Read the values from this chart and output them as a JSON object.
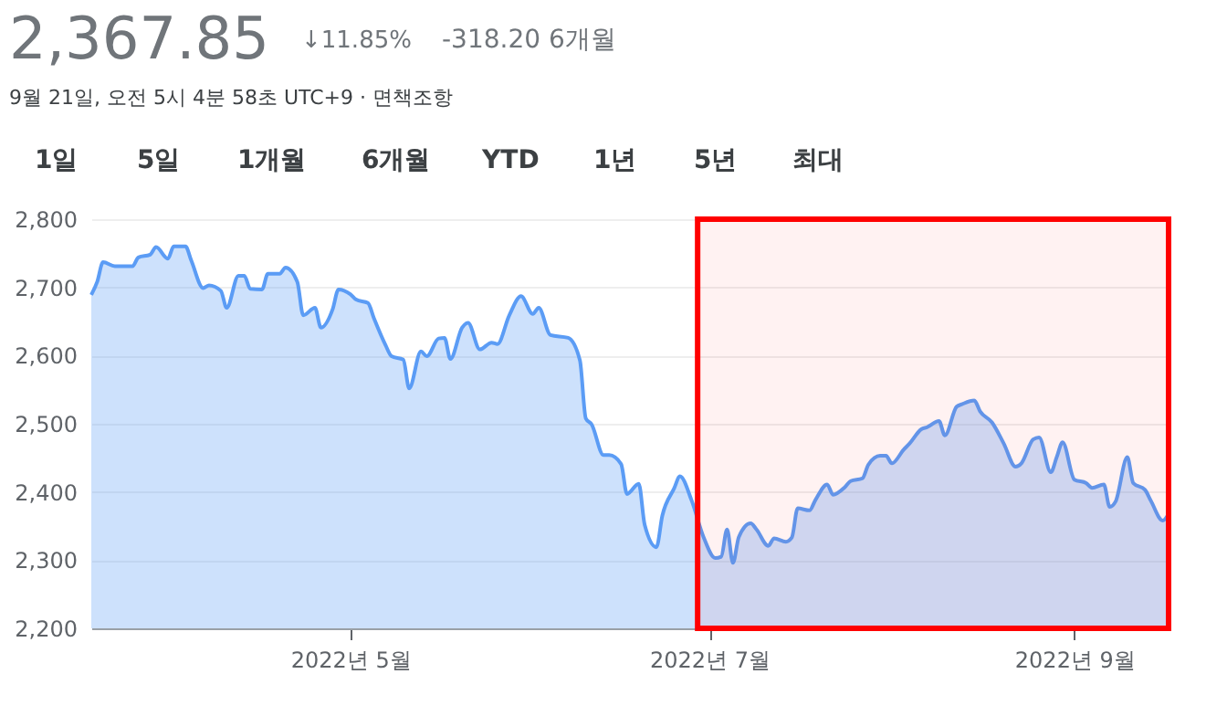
{
  "chart_data": {
    "type": "area",
    "title": "2,367.85",
    "annotations": [
      "↓11.85%",
      "-318.20 6개월",
      "9월 21일, 오전 5시 4분 58초 UTC+9 · 면책조항",
      "1일",
      "5일",
      "1개월",
      "6개월",
      "YTD",
      "1년",
      "5년",
      "최대"
    ],
    "x": [
      "2022-03-18",
      "2022-03-19",
      "2022-03-20",
      "2022-03-22",
      "2022-03-25",
      "2022-03-26",
      "2022-03-28",
      "2022-03-29",
      "2022-03-31",
      "2022-04-01",
      "2022-04-03",
      "2022-04-04",
      "2022-04-06",
      "2022-04-07",
      "2022-04-09",
      "2022-04-10",
      "2022-04-12",
      "2022-04-13",
      "2022-04-14",
      "2022-04-16",
      "2022-04-17",
      "2022-04-19",
      "2022-04-20",
      "2022-04-22",
      "2022-04-23",
      "2022-04-25",
      "2022-04-26",
      "2022-04-28",
      "2022-04-29",
      "2022-05-01",
      "2022-05-02",
      "2022-05-04",
      "2022-05-05",
      "2022-05-07",
      "2022-05-08",
      "2022-05-10",
      "2022-05-11",
      "2022-05-13",
      "2022-05-14",
      "2022-05-16",
      "2022-05-17",
      "2022-05-18",
      "2022-05-20",
      "2022-05-21",
      "2022-05-23",
      "2022-05-25",
      "2022-05-26",
      "2022-05-28",
      "2022-05-30",
      "2022-06-01",
      "2022-06-02",
      "2022-06-04",
      "2022-06-07",
      "2022-06-09",
      "2022-06-10",
      "2022-06-11",
      "2022-06-13",
      "2022-06-14",
      "2022-06-16",
      "2022-06-17",
      "2022-06-19",
      "2022-06-20",
      "2022-06-22",
      "2022-06-23",
      "2022-06-25",
      "2022-06-26",
      "2022-06-28",
      "2022-06-30",
      "2022-07-02",
      "2022-07-03",
      "2022-07-04",
      "2022-07-05",
      "2022-07-06",
      "2022-07-08",
      "2022-07-09",
      "2022-07-11",
      "2022-07-12",
      "2022-07-14",
      "2022-07-15",
      "2022-07-16",
      "2022-07-18",
      "2022-07-19",
      "2022-07-21",
      "2022-07-22",
      "2022-07-24",
      "2022-07-25",
      "2022-07-27",
      "2022-07-28",
      "2022-07-30",
      "2022-07-31",
      "2022-08-01",
      "2022-08-03",
      "2022-08-04",
      "2022-08-06",
      "2022-08-07",
      "2022-08-09",
      "2022-08-10",
      "2022-08-12",
      "2022-08-13",
      "2022-08-15",
      "2022-08-16",
      "2022-08-18",
      "2022-08-20",
      "2022-08-22",
      "2022-08-23",
      "2022-08-25",
      "2022-08-26",
      "2022-08-28",
      "2022-08-29",
      "2022-08-30",
      "2022-09-01",
      "2022-09-03",
      "2022-09-04",
      "2022-09-06",
      "2022-09-07",
      "2022-09-08",
      "2022-09-10",
      "2022-09-11",
      "2022-09-13",
      "2022-09-14",
      "2022-09-16",
      "2022-09-17"
    ],
    "series": [
      {
        "color": "#5b9cf5",
        "values": [
          2689,
          2708,
          2737,
          2731,
          2731,
          2744,
          2748,
          2759,
          2742,
          2760,
          2760,
          2739,
          2699,
          2703,
          2695,
          2670,
          2717,
          2717,
          2698,
          2697,
          2720,
          2720,
          2729,
          2708,
          2659,
          2670,
          2641,
          2668,
          2697,
          2690,
          2682,
          2677,
          2655,
          2615,
          2599,
          2594,
          2552,
          2606,
          2599,
          2625,
          2626,
          2595,
          2641,
          2648,
          2609,
          2619,
          2617,
          2659,
          2687,
          2661,
          2670,
          2630,
          2626,
          2593,
          2508,
          2499,
          2454,
          2454,
          2441,
          2397,
          2412,
          2352,
          2319,
          2365,
          2405,
          2423,
          2387,
          2334,
          2303,
          2305,
          2345,
          2296,
          2334,
          2354,
          2345,
          2321,
          2332,
          2327,
          2333,
          2376,
          2373,
          2388,
          2411,
          2396,
          2407,
          2416,
          2420,
          2440,
          2453,
          2453,
          2442,
          2462,
          2471,
          2492,
          2495,
          2504,
          2483,
          2525,
          2529,
          2534,
          2518,
          2502,
          2471,
          2437,
          2442,
          2477,
          2480,
          2429,
          2451,
          2473,
          2418,
          2413,
          2406,
          2411,
          2378,
          2386,
          2451,
          2413,
          2403,
          2387,
          2358,
          2367.85
        ]
      }
    ],
    "xlim": [
      "2022-03-18",
      "2022-09-17"
    ],
    "xticks": [
      {
        "value": "2022-05-01",
        "label": "2022년 5월"
      },
      {
        "value": "2022-07-01",
        "label": "2022년 7월"
      },
      {
        "value": "2022-09-01",
        "label": "2022년 9월"
      }
    ],
    "ylim": [
      2200,
      2800
    ],
    "yticks": [
      {
        "value": 2200,
        "label": "2,200"
      },
      {
        "value": 2300,
        "label": "2,300"
      },
      {
        "value": 2400,
        "label": "2,400"
      },
      {
        "value": 2500,
        "label": "2,500"
      },
      {
        "value": 2600,
        "label": "2,600"
      },
      {
        "value": 2700,
        "label": "2,700"
      },
      {
        "value": 2800,
        "label": "2,800"
      }
    ],
    "grid": "y",
    "bands": [
      {
        "axis": "x",
        "from": "2022-06-29",
        "to": "2022-09-17",
        "color": "#ff0000"
      }
    ]
  }
}
